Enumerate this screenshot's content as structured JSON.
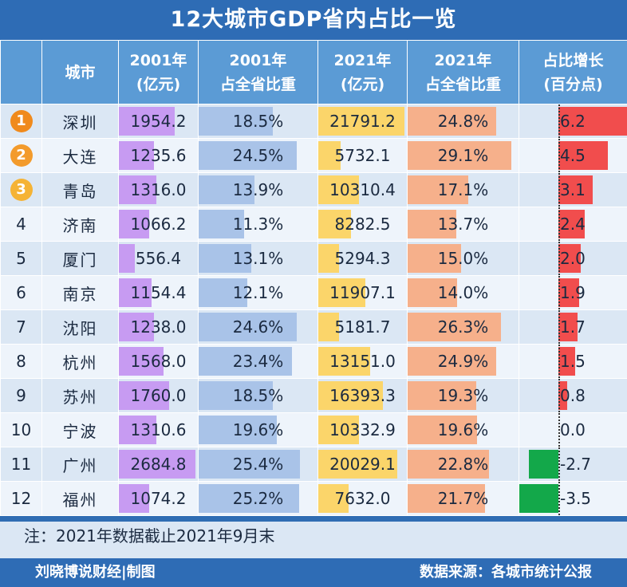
{
  "title": "12大城市GDP省内占比一览",
  "chart_data": {
    "type": "table",
    "title": "12大城市GDP省内占比一览",
    "columns": [
      {
        "key": "rank",
        "label": ""
      },
      {
        "key": "city",
        "label": "城市"
      },
      {
        "key": "gdp2001",
        "label": "2001年\n(亿元)"
      },
      {
        "key": "share2001",
        "label": "2001年\n占全省比重"
      },
      {
        "key": "gdp2021",
        "label": "2021年\n(亿元)"
      },
      {
        "key": "share2021",
        "label": "2021年\n占全省比重"
      },
      {
        "key": "change",
        "label": "占比增长\n(百分点)"
      }
    ],
    "rows": [
      {
        "rank": "1",
        "city": "深圳",
        "gdp2001": 1954.2,
        "share2001": 18.5,
        "gdp2021": 21791.2,
        "share2021": 24.8,
        "change": 6.2
      },
      {
        "rank": "2",
        "city": "大连",
        "gdp2001": 1235.6,
        "share2001": 24.5,
        "gdp2021": 5732.1,
        "share2021": 29.1,
        "change": 4.5
      },
      {
        "rank": "3",
        "city": "青岛",
        "gdp2001": 1316.0,
        "share2001": 13.9,
        "gdp2021": 10310.4,
        "share2021": 17.1,
        "change": 3.1
      },
      {
        "rank": "4",
        "city": "济南",
        "gdp2001": 1066.2,
        "share2001": 11.3,
        "gdp2021": 8282.5,
        "share2021": 13.7,
        "change": 2.4
      },
      {
        "rank": "5",
        "city": "厦门",
        "gdp2001": 556.4,
        "share2001": 13.1,
        "gdp2021": 5294.3,
        "share2021": 15.0,
        "change": 2.0
      },
      {
        "rank": "6",
        "city": "南京",
        "gdp2001": 1154.4,
        "share2001": 12.1,
        "gdp2021": 11907.1,
        "share2021": 14.0,
        "change": 1.9
      },
      {
        "rank": "7",
        "city": "沈阳",
        "gdp2001": 1238.0,
        "share2001": 24.6,
        "gdp2021": 5181.7,
        "share2021": 26.3,
        "change": 1.7
      },
      {
        "rank": "8",
        "city": "杭州",
        "gdp2001": 1568.0,
        "share2001": 23.4,
        "gdp2021": 13151.0,
        "share2021": 24.9,
        "change": 1.5
      },
      {
        "rank": "9",
        "city": "苏州",
        "gdp2001": 1760.0,
        "share2001": 18.5,
        "gdp2021": 16393.3,
        "share2021": 19.3,
        "change": 0.8
      },
      {
        "rank": "10",
        "city": "宁波",
        "gdp2001": 1310.6,
        "share2001": 19.6,
        "gdp2021": 10332.9,
        "share2021": 19.6,
        "change": 0.0
      },
      {
        "rank": "11",
        "city": "广州",
        "gdp2001": 2684.8,
        "share2001": 25.4,
        "gdp2021": 20029.1,
        "share2021": 22.8,
        "change": -2.7
      },
      {
        "rank": "12",
        "city": "福州",
        "gdp2001": 1074.2,
        "share2001": 25.2,
        "gdp2021": 7632.0,
        "share2021": 21.7,
        "change": -3.5
      }
    ],
    "bar_colors": {
      "gdp2001": "#c79bf2",
      "share2001": "#a9c3e8",
      "gdp2021": "#fbd56a",
      "share2021": "#f6b08b",
      "change_positive": "#f14d4d",
      "change_negative": "#13a84a"
    },
    "medal_colors": [
      "#f08a1c",
      "#f39b2c",
      "#f5b335"
    ]
  },
  "note": "注：2021年数据截止2021年9月末",
  "footer": {
    "left": "刘晓博说财经|制图",
    "right": "数据来源：各城市统计公报"
  }
}
